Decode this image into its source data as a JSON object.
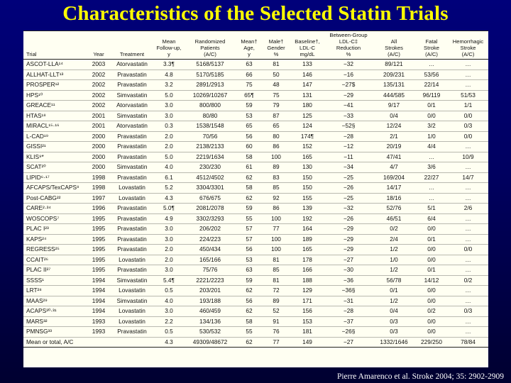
{
  "slide": {
    "title": "Characteristics of the Selected Statin Trials",
    "citation": "Pierre Amarenco et al. Stroke 2004; 35: 2902-2909"
  },
  "table": {
    "headers": [
      [
        "Trial"
      ],
      [
        "Year"
      ],
      [
        "Treatment"
      ],
      [
        "Mean",
        "Follow-up,",
        "y"
      ],
      [
        "Randomized",
        "Patients",
        "(A/C)"
      ],
      [
        "Mean†",
        "Age,",
        "y"
      ],
      [
        "Male†",
        "Gender",
        "%"
      ],
      [
        "Baseline†,",
        "LDL-C",
        "mg/dL"
      ],
      [
        "Between-Group",
        "LDL-C‡",
        "Reduction",
        "%"
      ],
      [
        "All",
        "Strokes",
        "(A/C)"
      ],
      [
        "Fatal",
        "Stroke",
        "(A/C)"
      ],
      [
        "Hemorrhagic",
        "Stroke",
        "(A/C)"
      ]
    ],
    "rows": [
      [
        "ASCOT-LLA¹⁴",
        "2003",
        "Atorvastatin",
        "3.3¶",
        "5168/5137",
        "63",
        "81",
        "133",
        "−32",
        "89/121",
        "…",
        "…"
      ],
      [
        "ALLHAT-LLT¹³",
        "2002",
        "Pravastatin",
        "4.8",
        "5170/5185",
        "66",
        "50",
        "146",
        "−16",
        "209/231",
        "53/56",
        "…"
      ],
      [
        "PROSPER¹²",
        "2002",
        "Pravastatin",
        "3.2",
        "2891/2913",
        "75",
        "48",
        "147",
        "−27$",
        "135/131",
        "22/14",
        "…"
      ],
      [
        "HPS¹⁰",
        "2002",
        "Simvastatin",
        "5.0",
        "10269/10267",
        "65¶",
        "75",
        "131",
        "−29",
        "444/585",
        "96/119",
        "51/53"
      ],
      [
        "GREACE¹¹",
        "2002",
        "Atorvastatin",
        "3.0",
        "800/800",
        "59",
        "79",
        "180",
        "−41",
        "9/17",
        "0/1",
        "1/1"
      ],
      [
        "HTAS¹⁸",
        "2001",
        "Simvastatin",
        "3.0",
        "80/80",
        "53",
        "87",
        "125",
        "−33",
        "0/4",
        "0/0",
        "0/0"
      ],
      [
        "MIRACL¹⁵·¹⁶",
        "2001",
        "Atorvastatin",
        "0.3",
        "1538/1548",
        "65",
        "65",
        "124",
        "−52§",
        "12/24",
        "3/2",
        "0/3"
      ],
      [
        "L-CAD¹⁹",
        "2000",
        "Pravastatin",
        "2.0",
        "70/56",
        "56",
        "80",
        "174¶",
        "−28",
        "2/1",
        "1/0",
        "0/0"
      ],
      [
        "GISSI²¹",
        "2000",
        "Pravastatin",
        "2.0",
        "2138/2133",
        "60",
        "86",
        "152",
        "−12",
        "20/19",
        "4/4",
        "…"
      ],
      [
        "KLIS⁹*",
        "2000",
        "Pravastatin",
        "5.0",
        "2219/1634",
        "58",
        "100",
        "165",
        "−11",
        "47/41",
        "…",
        "10/9"
      ],
      [
        "SCAT²⁰",
        "2000",
        "Simvastatin",
        "4.0",
        "230/230",
        "61",
        "89",
        "130",
        "−34",
        "4/7",
        "3/6",
        "…"
      ],
      [
        "LIPID⁶·¹⁷",
        "1998",
        "Pravastatin",
        "6.1",
        "4512/4502",
        "62",
        "83",
        "150",
        "−25",
        "169/204",
        "22/27",
        "14/7"
      ],
      [
        "AFCAPS/TexCAPS⁸",
        "1998",
        "Lovastatin",
        "5.2",
        "3304/3301",
        "58",
        "85",
        "150",
        "−26",
        "14/17",
        "…",
        "…"
      ],
      [
        "Post-CABG²²",
        "1997",
        "Lovastatin",
        "4.3",
        "676/675",
        "62",
        "92",
        "155",
        "−25",
        "18/16",
        "…",
        "…"
      ],
      [
        "CARE²·³⁴",
        "1996",
        "Pravastatin",
        "5.0¶",
        "2081/2078",
        "59",
        "86",
        "139",
        "−32",
        "52/76",
        "5/1",
        "2/6"
      ],
      [
        "WOSCOPS⁷",
        "1995",
        "Pravastatin",
        "4.9",
        "3302/3293",
        "55",
        "100",
        "192",
        "−26",
        "46/51",
        "6/4",
        "…"
      ],
      [
        "PLAC I²³",
        "1995",
        "Pravastatin",
        "3.0",
        "206/202",
        "57",
        "77",
        "164",
        "−29",
        "0/2",
        "0/0",
        "…"
      ],
      [
        "KAPS²⁴",
        "1995",
        "Pravastatin",
        "3.0",
        "224/223",
        "57",
        "100",
        "189",
        "−29",
        "2/4",
        "0/1",
        "…"
      ],
      [
        "REGRESS²⁵",
        "1995",
        "Pravastatin",
        "2.0",
        "450/434",
        "56",
        "100",
        "165",
        "−29",
        "1/2",
        "0/0",
        "0/0"
      ],
      [
        "CCAIT²⁶",
        "1995",
        "Lovastatin",
        "2.0",
        "165/166",
        "53",
        "81",
        "178",
        "−27",
        "1/0",
        "0/0",
        "…"
      ],
      [
        "PLAC II²⁷",
        "1995",
        "Pravastatin",
        "3.0",
        "75/76",
        "63",
        "85",
        "166",
        "−30",
        "1/2",
        "0/1",
        "…"
      ],
      [
        "SSSS¹",
        "1994",
        "Simvastatin",
        "5.4¶",
        "2221/2223",
        "59",
        "81",
        "188",
        "−36",
        "56/78",
        "14/12",
        "0/2"
      ],
      [
        "LRT²⁸",
        "1994",
        "Lovastatin",
        "0.5",
        "203/201",
        "62",
        "72",
        "129",
        "−36§",
        "0/1",
        "0/0",
        "…"
      ],
      [
        "MAAS²⁹",
        "1994",
        "Simvastatin",
        "4.0",
        "193/188",
        "56",
        "89",
        "171",
        "−31",
        "1/2",
        "0/0",
        "…"
      ],
      [
        "ACAPS³⁰·³¹",
        "1994",
        "Lovastatin",
        "3.0",
        "460/459",
        "62",
        "52",
        "156",
        "−28",
        "0/4",
        "0/2",
        "0/3"
      ],
      [
        "MARS³²",
        "1993",
        "Lovastatin",
        "2.2",
        "134/136",
        "58",
        "91",
        "153",
        "−37",
        "0/3",
        "0/0",
        "…"
      ],
      [
        "PMNSG³³",
        "1993",
        "Pravastatin",
        "0.5",
        "530/532",
        "55",
        "76",
        "181",
        "−26§",
        "0/3",
        "0/0",
        "…"
      ],
      [
        "Mean or total, A/C",
        "",
        "",
        "4.3",
        "49309/48672",
        "62",
        "77",
        "149",
        "−27",
        "1332/1646",
        "229/250",
        "78/84"
      ]
    ]
  }
}
